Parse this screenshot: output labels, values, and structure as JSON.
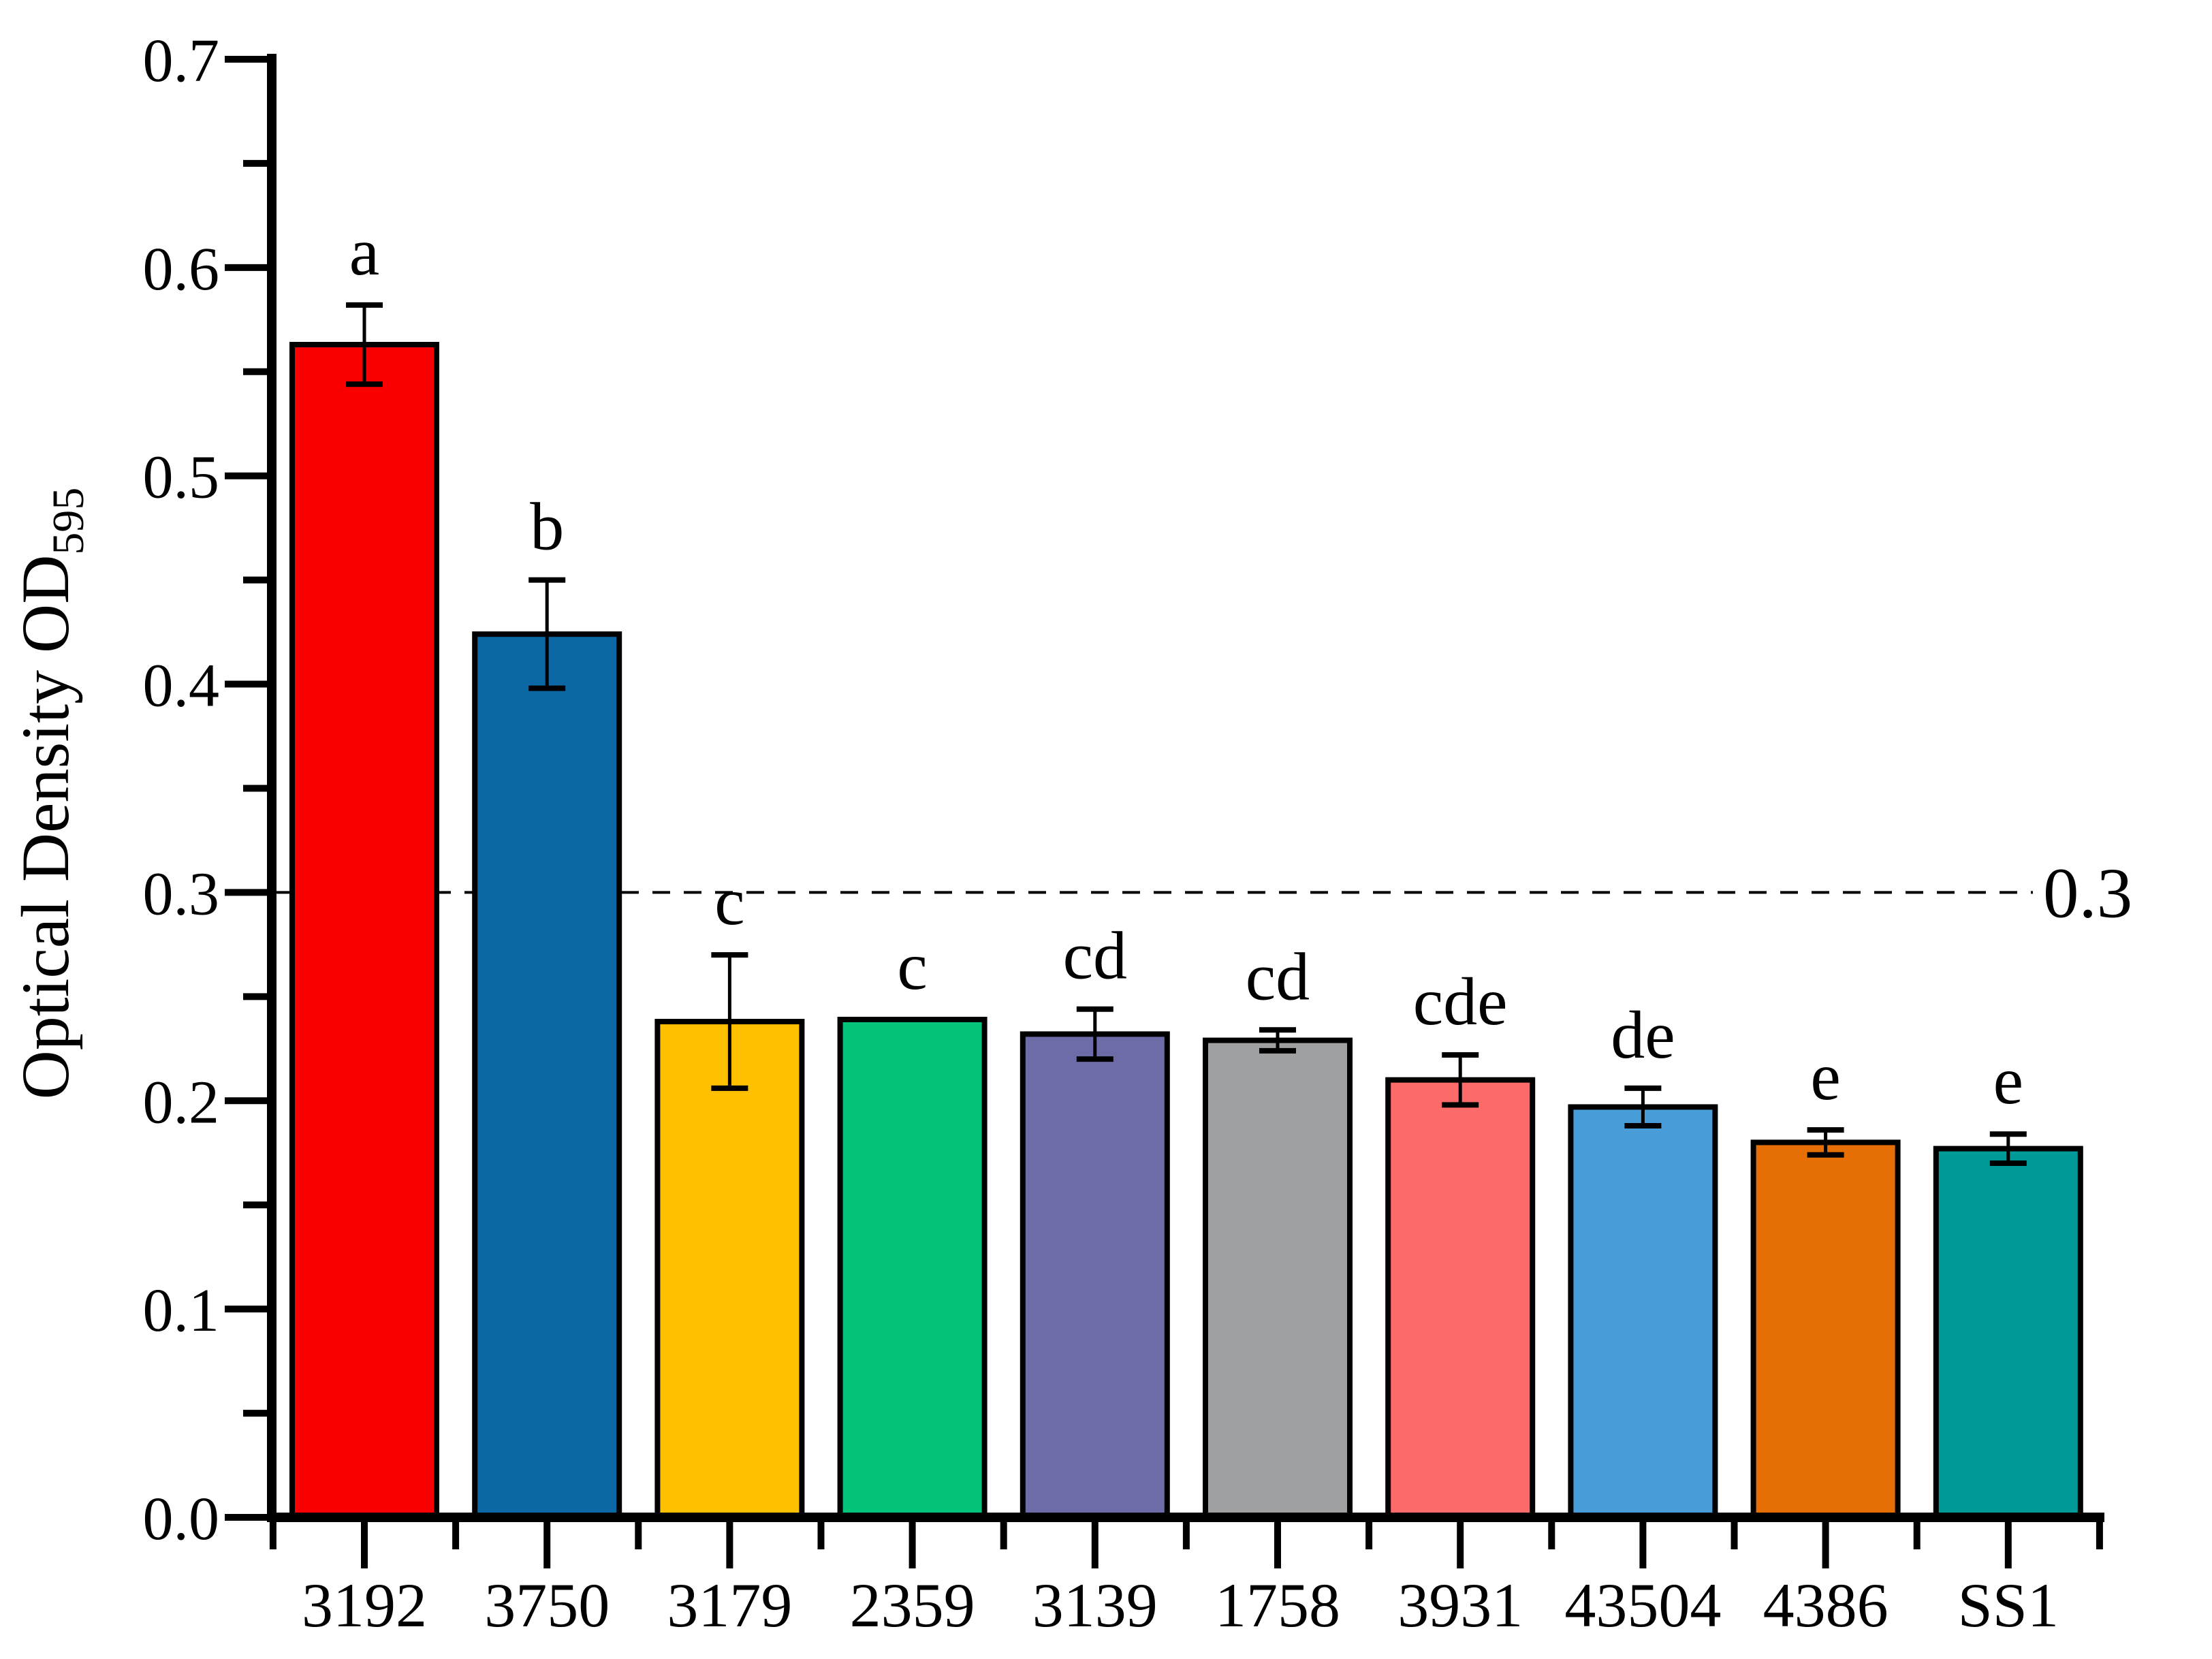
{
  "figure": {
    "background": "#ffffff",
    "axis_color": "#000000"
  },
  "chart_data": {
    "type": "bar",
    "title": "",
    "xlabel": "",
    "ylabel": "Optical Density OD",
    "ylabel_subscript": "595",
    "ylim": [
      0.0,
      0.7
    ],
    "ytick_step": 0.1,
    "ytick_labels": [
      "0.0",
      "0.1",
      "0.2",
      "0.3",
      "0.4",
      "0.5",
      "0.6",
      "0.7"
    ],
    "minor_ytick_step": 0.05,
    "grid": false,
    "legend_position": "none",
    "reference_line": {
      "value": 0.3,
      "label": "0.3",
      "style": "dashed",
      "color": "#000000"
    },
    "categories": [
      "3192",
      "3750",
      "3179",
      "2359",
      "3139",
      "1758",
      "3931",
      "43504",
      "4386",
      "SS1"
    ],
    "values": [
      0.563,
      0.424,
      0.238,
      0.239,
      0.232,
      0.229,
      0.21,
      0.197,
      0.18,
      0.177
    ],
    "errors": [
      0.019,
      0.026,
      0.032,
      0,
      0.012,
      0.005,
      0.012,
      0.009,
      0.006,
      0.007
    ],
    "sig_letters": [
      "a",
      "b",
      "c",
      "c",
      "cd",
      "cd",
      "cde",
      "de",
      "e",
      "e"
    ],
    "bar_colors": [
      "#FA0000",
      "#0B68A4",
      "#FFC000",
      "#02C377",
      "#6D6CA9",
      "#9EA0A2",
      "#FD6A6A",
      "#489DD8",
      "#E56E05",
      "#009A98"
    ],
    "bar_outline_color": "#000000"
  }
}
